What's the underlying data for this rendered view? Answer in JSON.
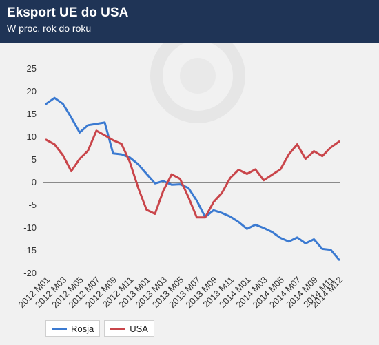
{
  "header": {
    "title": "Eksport UE do USA",
    "subtitle": "W proc. rok do roku"
  },
  "colors": {
    "header_bg": "#1f3456",
    "plot_bg": "#f1f1f1",
    "rosja": "#3b7ad1",
    "usa": "#c9454a"
  },
  "chart_data": {
    "type": "line",
    "title": "Eksport UE do USA",
    "subtitle": "W proc. rok do roku",
    "xlabel": "",
    "ylabel": "",
    "ylim": [
      -20,
      25
    ],
    "yticks": [
      25,
      20,
      15,
      10,
      5,
      0,
      -5,
      -10,
      -15,
      -20
    ],
    "grid": false,
    "legend": "bottom-left",
    "x": [
      "2012 M01",
      "2012 M02",
      "2012 M03",
      "2012 M04",
      "2012 M05",
      "2012 M06",
      "2012 M07",
      "2012 M08",
      "2012 M09",
      "2012 M10",
      "2012 M11",
      "2012 M12",
      "2013 M01",
      "2013 M02",
      "2013 M03",
      "2013 M04",
      "2013 M05",
      "2013 M06",
      "2013 M07",
      "2013 M08",
      "2013 M09",
      "2013 M10",
      "2013 M11",
      "2013 M12",
      "2014 M01",
      "2014 M02",
      "2014 M03",
      "2014 M04",
      "2014 M05",
      "2014 M06",
      "2014 M07",
      "2014 M08",
      "2014 M09",
      "2014 M10",
      "2014 M11",
      "2014 M12"
    ],
    "xticklabels": [
      "2012 M01",
      "2012 M03",
      "2012 M05",
      "2012 M07",
      "2012 M09",
      "2012 M11",
      "2013 M01",
      "2013 M03",
      "2013 M05",
      "2013 M07",
      "2013 M09",
      "2013 M11",
      "2014 M01",
      "2014 M03",
      "2014 M05",
      "2014 M07",
      "2014 M09",
      "2014 M11",
      "2014 M12"
    ],
    "series": [
      {
        "name": "Rosja",
        "values": [
          17.3,
          18.6,
          17.3,
          14.3,
          11.0,
          12.6,
          12.9,
          13.2,
          6.4,
          6.2,
          5.5,
          4.0,
          1.9,
          -0.2,
          0.3,
          -0.5,
          -0.4,
          -1.2,
          -4.0,
          -7.6,
          -6.1,
          -6.7,
          -7.5,
          -8.7,
          -10.2,
          -9.3,
          -10.0,
          -10.9,
          -12.2,
          -13.0,
          -12.1,
          -13.4,
          -12.5,
          -14.6,
          -14.8,
          -17.0
        ]
      },
      {
        "name": "USA",
        "values": [
          9.4,
          8.4,
          6.0,
          2.5,
          5.2,
          7.0,
          11.4,
          10.4,
          9.3,
          8.5,
          4.5,
          -1.2,
          -6.0,
          -6.9,
          -1.8,
          1.8,
          0.8,
          -3.2,
          -7.7,
          -7.7,
          -4.3,
          -2.3,
          1.0,
          2.8,
          1.9,
          2.9,
          0.5,
          1.7,
          2.9,
          6.2,
          8.4,
          5.2,
          6.9,
          5.8,
          7.7,
          9.0
        ]
      }
    ]
  },
  "legend": {
    "items": [
      {
        "label": "Rosja"
      },
      {
        "label": "USA"
      }
    ]
  }
}
